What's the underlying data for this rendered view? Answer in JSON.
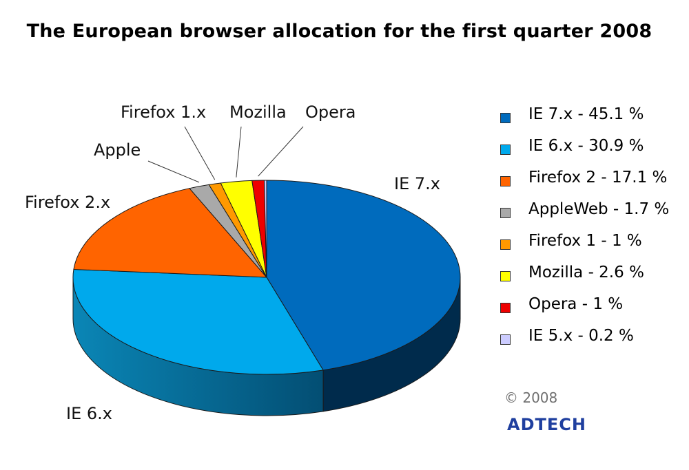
{
  "chart_data": {
    "type": "pie",
    "title": "The European browser allocation for the first quarter 2008",
    "series": [
      {
        "name": "IE 7.x",
        "legend": "IE 7.x - 45.1 %",
        "value": 45.1,
        "color": "#006bbd"
      },
      {
        "name": "IE 6.x",
        "legend": "IE 6.x - 30.9 %",
        "value": 30.9,
        "color": "#00a9ec"
      },
      {
        "name": "Firefox 2",
        "legend": "Firefox 2 - 17.1 %",
        "value": 17.1,
        "color": "#ff6400"
      },
      {
        "name": "AppleWeb",
        "legend": "AppleWeb - 1.7 %",
        "value": 1.7,
        "color": "#a9a9a9"
      },
      {
        "name": "Firefox 1",
        "legend": "Firefox 1 - 1 %",
        "value": 1.0,
        "color": "#ff9900"
      },
      {
        "name": "Mozilla",
        "legend": "Mozilla - 2.6 %",
        "value": 2.6,
        "color": "#ffff00"
      },
      {
        "name": "Opera",
        "legend": "Opera - 1 %",
        "value": 1.0,
        "color": "#ee0000"
      },
      {
        "name": "IE 5.x",
        "legend": "IE 5.x - 0.2 %",
        "value": 0.2,
        "color": "#ccccff"
      }
    ],
    "slice_labels": [
      "IE 7.x",
      "IE 6.x",
      "Firefox 2.x",
      "Apple",
      "Firefox 1.x",
      "Mozilla",
      "Opera"
    ],
    "legend_position": "right"
  },
  "copyright": "© 2008",
  "brand": "ADTECH"
}
